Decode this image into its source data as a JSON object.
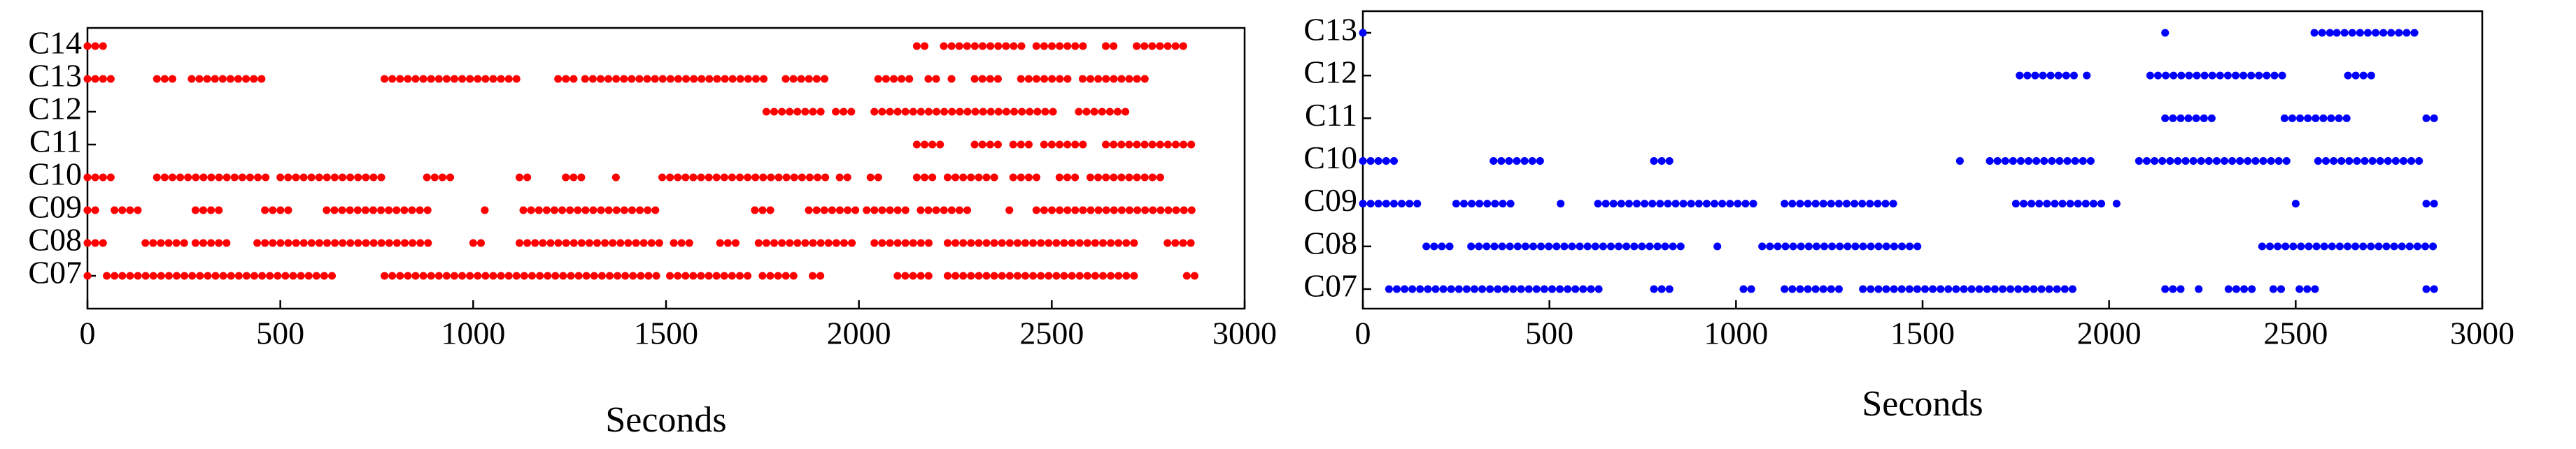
{
  "chart_data": [
    {
      "type": "timeline",
      "xlabel": "Seconds",
      "color": "#ff0000",
      "categories": [
        "C07",
        "C08",
        "C09",
        "C10",
        "C11",
        "C12",
        "C13",
        "C14"
      ],
      "intervals": [
        [
          [
            0,
            20
          ],
          [
            50,
            640
          ],
          [
            770,
            1480
          ],
          [
            1510,
            1720
          ],
          [
            1750,
            1850
          ],
          [
            1880,
            1920
          ],
          [
            2100,
            2200
          ],
          [
            2230,
            2730
          ],
          [
            2850,
            2880
          ]
        ],
        [
          [
            0,
            60
          ],
          [
            150,
            270
          ],
          [
            280,
            370
          ],
          [
            440,
            900
          ],
          [
            1000,
            1040
          ],
          [
            1120,
            1500
          ],
          [
            1520,
            1580
          ],
          [
            1640,
            1700
          ],
          [
            1740,
            2000
          ],
          [
            2040,
            2200
          ],
          [
            2230,
            2720
          ],
          [
            2800,
            2880
          ]
        ],
        [
          [
            0,
            30
          ],
          [
            70,
            150
          ],
          [
            280,
            360
          ],
          [
            460,
            540
          ],
          [
            620,
            900
          ],
          [
            1030,
            1050
          ],
          [
            1130,
            1490
          ],
          [
            1730,
            1780
          ],
          [
            1870,
            2000
          ],
          [
            2020,
            2130
          ],
          [
            2160,
            2300
          ],
          [
            2390,
            2410
          ],
          [
            2460,
            2880
          ]
        ],
        [
          [
            0,
            80
          ],
          [
            180,
            480
          ],
          [
            500,
            770
          ],
          [
            880,
            950
          ],
          [
            1120,
            1150
          ],
          [
            1240,
            1300
          ],
          [
            1370,
            1390
          ],
          [
            1490,
            1920
          ],
          [
            1950,
            1980
          ],
          [
            2030,
            2070
          ],
          [
            2150,
            2200
          ],
          [
            2230,
            2360
          ],
          [
            2400,
            2480
          ],
          [
            2520,
            2580
          ],
          [
            2600,
            2790
          ]
        ],
        [
          [
            2150,
            2230
          ],
          [
            2300,
            2370
          ],
          [
            2400,
            2460
          ],
          [
            2480,
            2600
          ],
          [
            2640,
            2880
          ]
        ],
        [
          [
            1760,
            1920
          ],
          [
            1940,
            1990
          ],
          [
            2040,
            2520
          ],
          [
            2570,
            2700
          ]
        ],
        [
          [
            0,
            70
          ],
          [
            180,
            240
          ],
          [
            270,
            460
          ],
          [
            770,
            1120
          ],
          [
            1220,
            1270
          ],
          [
            1290,
            1770
          ],
          [
            1810,
            1920
          ],
          [
            2050,
            2150
          ],
          [
            2180,
            2220
          ],
          [
            2240,
            2260
          ],
          [
            2300,
            2380
          ],
          [
            2420,
            2560
          ],
          [
            2580,
            2760
          ]
        ],
        [
          [
            0,
            60
          ],
          [
            2150,
            2180
          ],
          [
            2220,
            2430
          ],
          [
            2460,
            2600
          ],
          [
            2640,
            2680
          ],
          [
            2720,
            2850
          ]
        ]
      ],
      "xlim": [
        0,
        3000
      ],
      "xticks": [
        0,
        500,
        1000,
        1500,
        2000,
        2500,
        3000
      ]
    },
    {
      "type": "timeline",
      "xlabel": "Seconds",
      "color": "#0000ff",
      "categories": [
        "C07",
        "C08",
        "C09",
        "C10",
        "C11",
        "C12",
        "C13"
      ],
      "intervals": [
        [
          [
            70,
            640
          ],
          [
            780,
            840
          ],
          [
            1020,
            1060
          ],
          [
            1130,
            1290
          ],
          [
            1340,
            1920
          ],
          [
            2150,
            2210
          ],
          [
            2240,
            2260
          ],
          [
            2320,
            2400
          ],
          [
            2440,
            2480
          ],
          [
            2510,
            2560
          ],
          [
            2850,
            2880
          ]
        ],
        [
          [
            170,
            250
          ],
          [
            290,
            800
          ],
          [
            810,
            870
          ],
          [
            950,
            970
          ],
          [
            1070,
            1500
          ],
          [
            2410,
            2880
          ]
        ],
        [
          [
            0,
            160
          ],
          [
            250,
            410
          ],
          [
            530,
            550
          ],
          [
            630,
            1050
          ],
          [
            1130,
            1440
          ],
          [
            1750,
            1980
          ],
          [
            2020,
            2030
          ],
          [
            2500,
            2520
          ],
          [
            2850,
            2880
          ]
        ],
        [
          [
            0,
            90
          ],
          [
            350,
            480
          ],
          [
            780,
            840
          ],
          [
            1600,
            1620
          ],
          [
            1680,
            1960
          ],
          [
            2080,
            2480
          ],
          [
            2560,
            2840
          ]
        ],
        [
          [
            2150,
            2290
          ],
          [
            2470,
            2640
          ],
          [
            2850,
            2880
          ]
        ],
        [
          [
            1760,
            1920
          ],
          [
            1940,
            1960
          ],
          [
            2110,
            2470
          ],
          [
            2640,
            2720
          ]
        ],
        [
          [
            0,
            20
          ],
          [
            2150,
            2170
          ],
          [
            2550,
            2600
          ],
          [
            2610,
            2820
          ]
        ]
      ],
      "xlim": [
        0,
        3000
      ],
      "xticks": [
        0,
        500,
        1000,
        1500,
        2000,
        2500,
        3000
      ]
    }
  ]
}
